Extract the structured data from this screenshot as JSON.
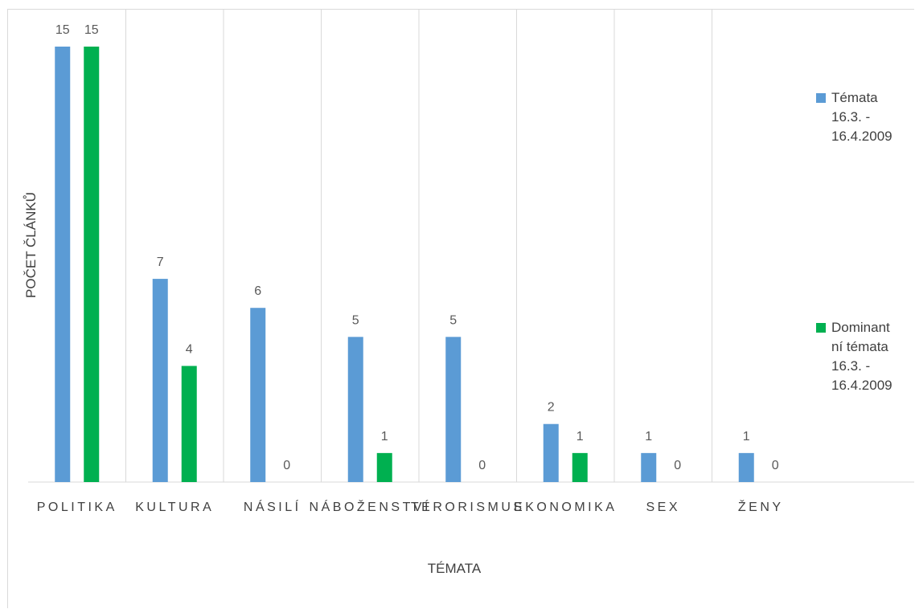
{
  "chart_data": {
    "type": "bar",
    "categories": [
      "POLITIKA",
      "KULTURA",
      "NÁSILÍ",
      "NÁBOŽENSTVÍ",
      "TERORISMUS",
      "EKONOMIKA",
      "SEX",
      "ŽENY"
    ],
    "series": [
      {
        "name": "Témata 16.3. - 16.4.2009",
        "color": "#5b9bd5",
        "values": [
          15,
          7,
          6,
          5,
          5,
          2,
          1,
          1
        ]
      },
      {
        "name": "Dominantní témata 16.3. - 16.4.2009",
        "color": "#00b050",
        "values": [
          15,
          4,
          0,
          1,
          0,
          1,
          0,
          0
        ]
      }
    ],
    "xlabel": "TÉMATA",
    "ylabel": "POČET ČLÁNKŮ",
    "ylim": [
      0,
      15
    ],
    "grid": "vertical-category-dividers",
    "data_labels": true,
    "legend_position": "right"
  },
  "legend": {
    "series_0_label": "Témata\n16.3. -\n16.4.2009",
    "series_1_label": "Dominant\nní témata\n16.3. -\n16.4.2009"
  },
  "colors": {
    "series_0": "#5b9bd5",
    "series_1": "#00b050",
    "axis": "#d9d9d9",
    "text": "#404040"
  }
}
